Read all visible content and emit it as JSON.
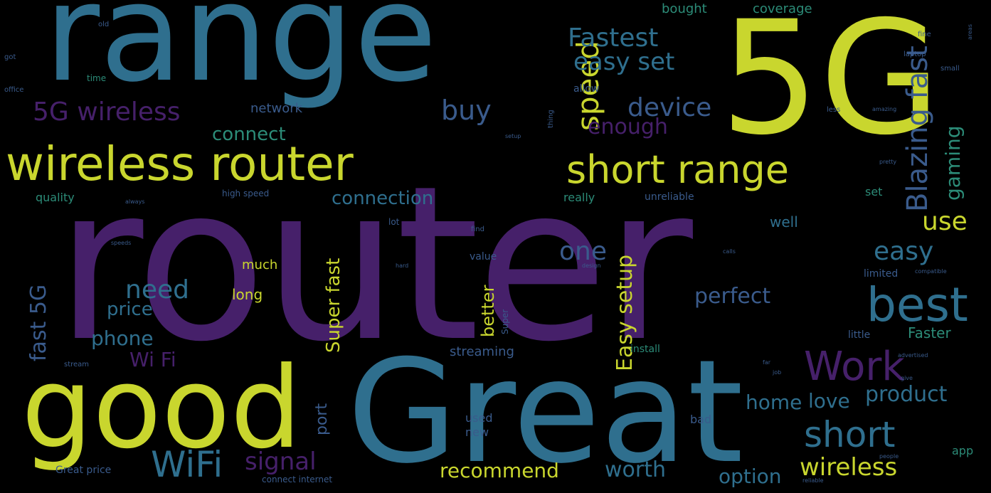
{
  "colors": {
    "background": "#000000",
    "purple": "#46206A",
    "teal": "#2F6F8E",
    "blue": "#3A5B8C",
    "green": "#2C8C78",
    "yellow_green": "#C9D62E",
    "lime": "#8ABF3A"
  },
  "words": {
    "router": "router",
    "range": "range",
    "fiveg": "5G",
    "great": "Great",
    "good": "good",
    "wireless_router": "wireless router",
    "short_range": "short range",
    "best": "best",
    "work": "Work",
    "short": "short",
    "wifi": "WiFi",
    "fiveg_wireless": "5G wireless",
    "speed": "speed",
    "fastest": "Fastest",
    "easy_set": "easy set",
    "buy": "buy",
    "device": "device",
    "enough": "enough",
    "connect": "connect",
    "network": "network",
    "blazing_fast": "Blazing fast",
    "gaming": "gaming",
    "connection": "connection",
    "use": "use",
    "easy": "easy",
    "one": "one",
    "easy_setup": "Easy setup",
    "need": "need",
    "price": "price",
    "phone": "phone",
    "wi_fi": "Wi Fi",
    "fast_5g": "fast 5G",
    "perfect": "perfect",
    "super_fast": "Super fast",
    "better": "better",
    "product": "product",
    "home": "home",
    "love": "love",
    "signal": "signal",
    "recommend": "recommend",
    "worth": "worth",
    "option": "option",
    "wireless": "wireless",
    "port": "port",
    "faster": "Faster",
    "streaming": "streaming",
    "much": "much",
    "long": "long",
    "well": "well",
    "bought": "bought",
    "coverage": "coverage",
    "quality": "quality",
    "high_speed": "high speed",
    "really": "really",
    "unreliable": "unreliable",
    "set": "set",
    "used": "used",
    "new": "new",
    "bad": "bad",
    "time": "time",
    "allow": "allow",
    "value": "value",
    "install": "install",
    "limited": "limited",
    "little": "little",
    "great_price": "Great price",
    "connect_internet": "connect internet",
    "app": "app",
    "small": "small",
    "laptop": "laptop",
    "fine": "fine",
    "less": "less",
    "old": "old",
    "stream": "stream",
    "hard": "hard",
    "find": "find",
    "lot": "lot",
    "calls": "calls",
    "design": "design",
    "compatible": "compatible",
    "advertised": "advertised",
    "amazing": "amazing",
    "pretty": "pretty",
    "people": "people",
    "reliable": "reliable",
    "office": "office",
    "always": "always",
    "speeds": "speeds",
    "setup": "setup",
    "thing": "thing",
    "super": "Super",
    "job": "job",
    "far": "far",
    "give": "give",
    "got": "got",
    "areas": "areas"
  }
}
